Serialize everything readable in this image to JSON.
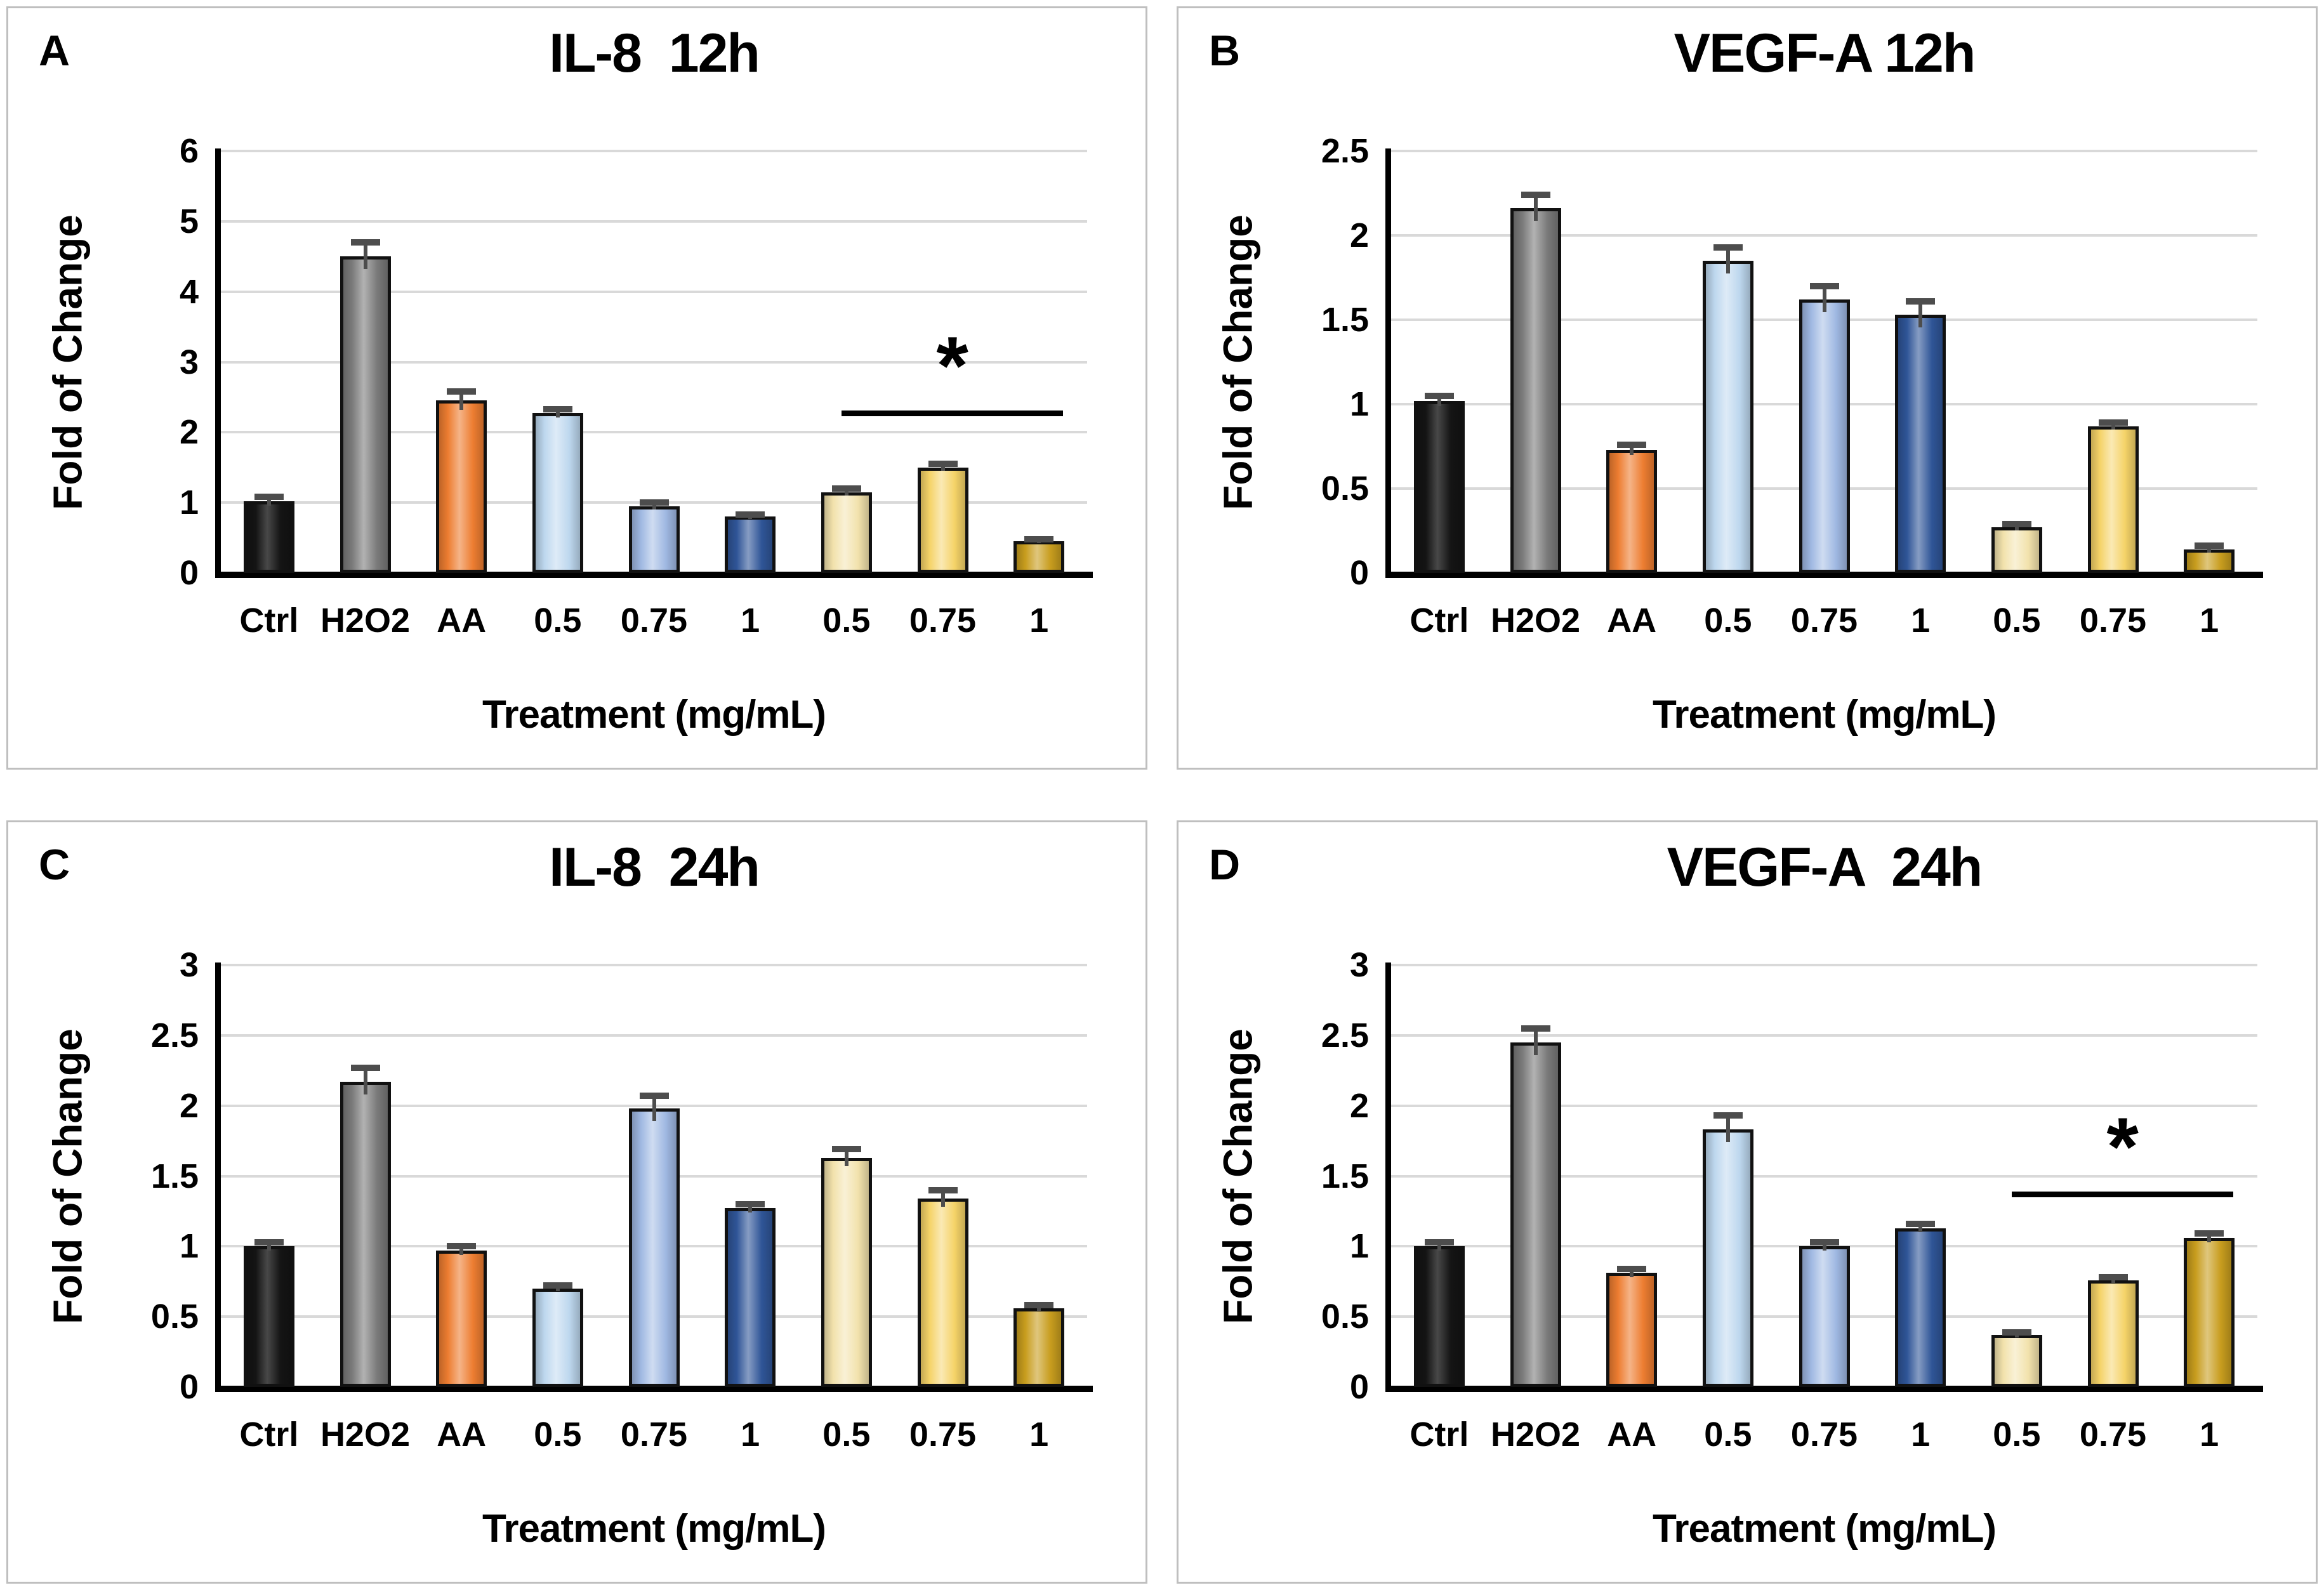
{
  "figure": {
    "background": "#FFFFFF",
    "panel_border_color": "#BFBFBF"
  },
  "colors": {
    "bars": [
      "#141414",
      "#7A7A7A",
      "#ED7D31",
      "#BDD7EE",
      "#9FB8E2",
      "#2F5597",
      "#F2E2AC",
      "#F5D368",
      "#C89D1E"
    ],
    "gridline": "#D9D9D9",
    "axis": "#000000",
    "error_bar": "#4D4D4D",
    "bar_outline": "#111111",
    "significance": "#000000"
  },
  "chart_data": [
    {
      "type": "bar",
      "panel_label": "A",
      "title": "IL-8  12h",
      "ylabel": "Fold of Change",
      "xlabel": "Treatment (mg/mL)",
      "ylim": [
        0,
        6
      ],
      "yticks": [
        "0",
        "1",
        "2",
        "3",
        "4",
        "5",
        "6"
      ],
      "grid": true,
      "categories": [
        "Ctrl",
        "H2O2",
        "AA",
        "0.5",
        "0.75",
        "1",
        "0.5",
        "0.75",
        "1"
      ],
      "values": [
        1.02,
        4.5,
        2.45,
        2.27,
        0.95,
        0.8,
        1.15,
        1.5,
        0.45
      ],
      "errors": [
        0.06,
        0.2,
        0.13,
        0.06,
        0.05,
        0.03,
        0.05,
        0.05,
        0.03
      ],
      "significance": {
        "label": "*",
        "x1": 6.45,
        "x2": 8.75,
        "y": 2.27
      }
    },
    {
      "type": "bar",
      "panel_label": "B",
      "title": "VEGF-A 12h",
      "ylabel": "Fold of Change",
      "xlabel": "Treatment (mg/mL)",
      "ylim": [
        0,
        2.5
      ],
      "yticks": [
        "0",
        "0.5",
        "1",
        "1.5",
        "2",
        "2.5"
      ],
      "grid": true,
      "categories": [
        "Ctrl",
        "H2O2",
        "AA",
        "0.5",
        "0.75",
        "1",
        "0.5",
        "0.75",
        "1"
      ],
      "values": [
        1.02,
        2.16,
        0.73,
        1.85,
        1.62,
        1.53,
        0.27,
        0.87,
        0.14
      ],
      "errors": [
        0.03,
        0.08,
        0.03,
        0.08,
        0.08,
        0.08,
        0.02,
        0.02,
        0.02
      ],
      "significance": null
    },
    {
      "type": "bar",
      "panel_label": "C",
      "title": "IL-8  24h",
      "ylabel": "Fold of Change",
      "xlabel": "Treatment (mg/mL)",
      "ylim": [
        0,
        3
      ],
      "yticks": [
        "0",
        "0.5",
        "1",
        "1.5",
        "2",
        "2.5",
        "3"
      ],
      "grid": true,
      "categories": [
        "Ctrl",
        "H2O2",
        "AA",
        "0.5",
        "0.75",
        "1",
        "0.5",
        "0.75",
        "1"
      ],
      "values": [
        1.0,
        2.17,
        0.97,
        0.7,
        1.98,
        1.27,
        1.63,
        1.34,
        0.56
      ],
      "errors": [
        0.03,
        0.1,
        0.03,
        0.02,
        0.09,
        0.03,
        0.06,
        0.06,
        0.02
      ],
      "significance": null
    },
    {
      "type": "bar",
      "panel_label": "D",
      "title": "VEGF-A  24h",
      "ylabel": "Fold of Change",
      "xlabel": "Treatment (mg/mL)",
      "ylim": [
        0,
        3
      ],
      "yticks": [
        "0",
        "0.5",
        "1",
        "1.5",
        "2",
        "2.5",
        "3"
      ],
      "grid": true,
      "categories": [
        "Ctrl",
        "H2O2",
        "AA",
        "0.5",
        "0.75",
        "1",
        "0.5",
        "0.75",
        "1"
      ],
      "values": [
        1.0,
        2.45,
        0.81,
        1.83,
        1.0,
        1.13,
        0.37,
        0.76,
        1.06
      ],
      "errors": [
        0.03,
        0.1,
        0.03,
        0.1,
        0.03,
        0.03,
        0.02,
        0.02,
        0.03
      ],
      "significance": {
        "label": "*",
        "x1": 6.45,
        "x2": 8.75,
        "y": 1.37
      }
    }
  ]
}
